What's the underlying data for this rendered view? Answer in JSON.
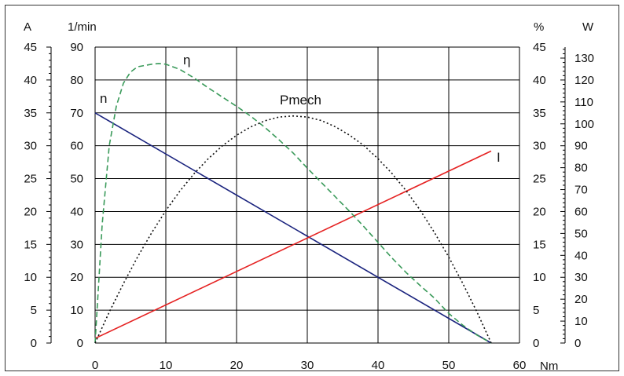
{
  "chart_data": {
    "type": "line",
    "x": {
      "unit": "Nm",
      "range": [
        0,
        60
      ],
      "ticks": [
        0,
        10,
        20,
        30,
        40,
        50,
        60
      ]
    },
    "axes": {
      "current": {
        "unit": "A",
        "range": [
          0,
          45
        ],
        "ticks": [
          0,
          5,
          10,
          15,
          20,
          25,
          30,
          35,
          40,
          45
        ]
      },
      "speed": {
        "unit": "1/min",
        "range": [
          0,
          90
        ],
        "ticks": [
          0,
          10,
          20,
          30,
          40,
          50,
          60,
          70,
          80,
          90
        ]
      },
      "efficiency": {
        "unit": "%",
        "range": [
          0,
          45
        ],
        "ticks": [
          0,
          5,
          10,
          15,
          20,
          25,
          30,
          35,
          40,
          45
        ]
      },
      "power": {
        "unit": "W",
        "range": [
          0,
          135
        ],
        "ticks": [
          0,
          10,
          20,
          30,
          40,
          50,
          60,
          70,
          80,
          90,
          100,
          110,
          120,
          130
        ]
      }
    },
    "grid": true,
    "series": [
      {
        "name": "n",
        "axis": "speed",
        "color": "#1a237e",
        "style": "solid",
        "points": [
          [
            0,
            70
          ],
          [
            56,
            0
          ]
        ]
      },
      {
        "name": "I",
        "axis": "current",
        "color": "#e52222",
        "style": "solid",
        "points": [
          [
            0,
            0.7
          ],
          [
            56,
            29.2
          ]
        ]
      },
      {
        "name": "η",
        "axis": "efficiency",
        "color": "#3a9a5a",
        "style": "dashed",
        "points": [
          [
            0,
            0
          ],
          [
            1,
            18
          ],
          [
            2,
            30
          ],
          [
            3,
            36
          ],
          [
            4,
            39.5
          ],
          [
            5,
            41.2
          ],
          [
            6,
            42
          ],
          [
            8,
            42.4
          ],
          [
            9,
            42.5
          ],
          [
            10,
            42.4
          ],
          [
            12,
            41.6
          ],
          [
            14,
            40.3
          ],
          [
            16,
            38.8
          ],
          [
            18,
            37.4
          ],
          [
            20,
            36
          ],
          [
            22,
            34.5
          ],
          [
            24,
            32.8
          ],
          [
            26,
            30.9
          ],
          [
            28,
            28.9
          ],
          [
            30,
            26.6
          ],
          [
            32,
            24.4
          ],
          [
            34,
            22.2
          ],
          [
            36,
            20
          ],
          [
            38,
            17.7
          ],
          [
            40,
            15.3
          ],
          [
            42,
            12.9
          ],
          [
            44,
            10.7
          ],
          [
            46,
            8.7
          ],
          [
            48,
            6.8
          ],
          [
            50,
            4.5
          ],
          [
            52,
            2.7
          ],
          [
            54,
            1.2
          ],
          [
            56,
            0
          ]
        ]
      },
      {
        "name": "Pmech",
        "axis": "power",
        "color": "#111111",
        "style": "dotted",
        "points": [
          [
            0,
            0
          ],
          [
            2,
            14.1
          ],
          [
            4,
            27.1
          ],
          [
            6,
            39.2
          ],
          [
            8,
            50.3
          ],
          [
            10,
            60.4
          ],
          [
            12,
            69.4
          ],
          [
            14,
            77.3
          ],
          [
            16,
            84.1
          ],
          [
            18,
            90
          ],
          [
            20,
            94.8
          ],
          [
            22,
            98.6
          ],
          [
            24,
            101.4
          ],
          [
            26,
            103.1
          ],
          [
            28,
            103.6
          ],
          [
            30,
            103.1
          ],
          [
            32,
            101.5
          ],
          [
            34,
            98.6
          ],
          [
            36,
            94.8
          ],
          [
            38,
            90.1
          ],
          [
            40,
            84.1
          ],
          [
            42,
            77.3
          ],
          [
            44,
            69.4
          ],
          [
            46,
            60.4
          ],
          [
            48,
            50.3
          ],
          [
            50,
            39.2
          ],
          [
            52,
            27.1
          ],
          [
            54,
            14.1
          ],
          [
            56,
            0
          ]
        ]
      }
    ],
    "series_labels": {
      "n": "n",
      "eta": "η",
      "pmech": "Pmech",
      "current": "I"
    }
  }
}
